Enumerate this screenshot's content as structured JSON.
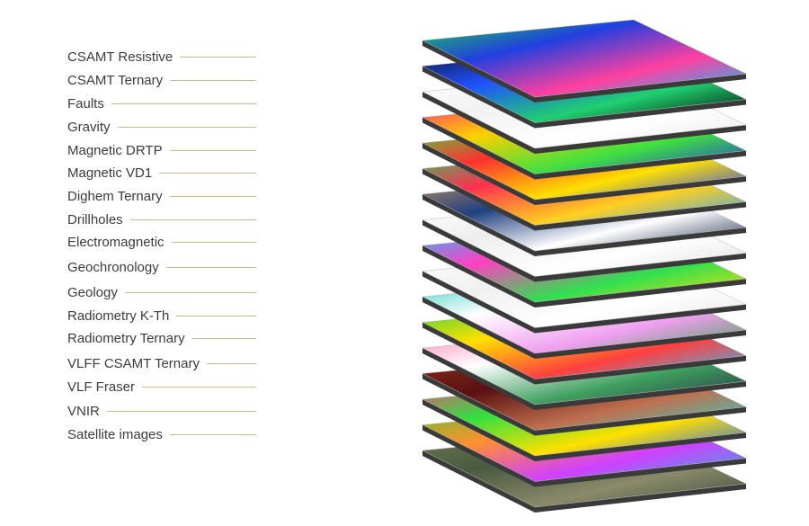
{
  "layers": [
    {
      "label": "CSAMT Resistive",
      "colors": [
        "#1fd24a",
        "#2040e0",
        "#ff40a0",
        "#00c8ff"
      ]
    },
    {
      "label": "CSAMT Ternary",
      "colors": [
        "#101020",
        "#2050ff",
        "#20d070",
        "#000000"
      ]
    },
    {
      "label": "Faults",
      "colors": [
        "#ffffff",
        "#f2f2f2",
        "#ffffff",
        "#e8e8e8"
      ]
    },
    {
      "label": "Gravity",
      "colors": [
        "#ff2080",
        "#ffd000",
        "#40e040",
        "#2030e0"
      ]
    },
    {
      "label": "Magnetic DRTP",
      "colors": [
        "#40e040",
        "#ff3030",
        "#ffe000",
        "#2040ff"
      ]
    },
    {
      "label": "Magnetic VD1",
      "colors": [
        "#20d060",
        "#ff3050",
        "#ffd020",
        "#30a0ff"
      ]
    },
    {
      "label": "Dighem Ternary",
      "colors": [
        "#c09060",
        "#204080",
        "#ffffff",
        "#102040"
      ]
    },
    {
      "label": "Drillholes",
      "colors": [
        "#ffffff",
        "#eeeeee",
        "#ffffff",
        "#dddddd"
      ]
    },
    {
      "label": "Electromagnetic",
      "colors": [
        "#20c0ff",
        "#ff40c0",
        "#30e050",
        "#ffe000"
      ]
    },
    {
      "label": "Geochronology",
      "colors": [
        "#ffffff",
        "#f0f0f0",
        "#ffffff",
        "#e6e6e6"
      ]
    },
    {
      "label": "Geology",
      "colors": [
        "#30d0c0",
        "#ffffff",
        "#f0a0f0",
        "#40a050"
      ]
    },
    {
      "label": "Radiometry K-Th",
      "colors": [
        "#30d040",
        "#ffe000",
        "#ff4040",
        "#30c0ff"
      ]
    },
    {
      "label": "Radiometry Ternary",
      "colors": [
        "#ff80b0",
        "#ffffff",
        "#40a060",
        "#203040"
      ]
    },
    {
      "label": "VLFF CSAMT Ternary",
      "colors": [
        "#8a3020",
        "#5a1010",
        "#c07050",
        "#30d0c0"
      ]
    },
    {
      "label": "VLF Fraser",
      "colors": [
        "#ff4080",
        "#30e040",
        "#ffe000",
        "#2060ff"
      ]
    },
    {
      "label": "VNIR",
      "colors": [
        "#60c030",
        "#ff9030",
        "#d040ff",
        "#30b0e0"
      ]
    },
    {
      "label": "Satellite images",
      "colors": [
        "#6a7a50",
        "#4a5a40",
        "#8a8a6a",
        "#3a4a3a"
      ]
    }
  ],
  "leader_color": "#c9b98a",
  "text_color": "#3b3b3b"
}
